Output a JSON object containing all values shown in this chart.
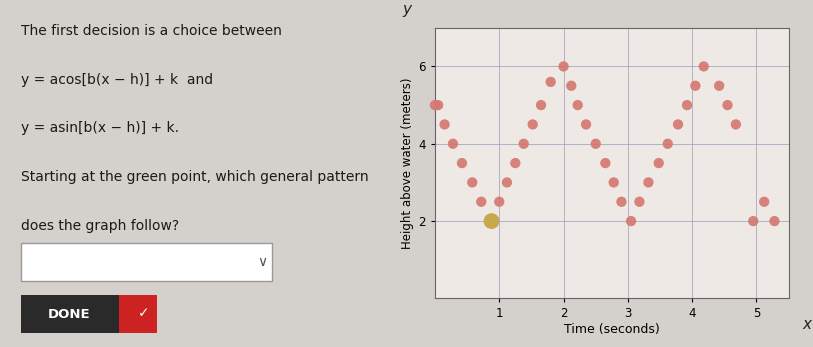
{
  "text_lines_raw": [
    "The first decision is a choice between",
    "y = acos[b(x − h)] + k  and",
    "y = asin[b(x − h)] + k.",
    "Starting at the green point, which general pattern",
    "does the graph follow?"
  ],
  "done_label": "DONE",
  "ylabel": "Height above water (meters)",
  "xlabel": "Time (seconds)",
  "x_axis_label": "x",
  "y_axis_label": "y",
  "xlim": [
    0,
    5.5
  ],
  "ylim": [
    0,
    7
  ],
  "xticks": [
    1,
    2,
    3,
    4,
    5
  ],
  "yticks": [
    2,
    4,
    6
  ],
  "bg_color": "#d4d0cc",
  "plot_bg": "#eee9e4",
  "red_color": "#d47870",
  "green_color": "#c8a84b",
  "marker_size": 55,
  "green_marker_size": 130,
  "red_points_x": [
    0.05,
    0.15,
    0.28,
    0.42,
    0.58,
    0.72,
    1.0,
    1.12,
    1.25,
    1.38,
    1.52,
    1.65,
    1.8,
    2.0,
    2.12,
    2.22,
    2.35,
    2.5,
    2.65,
    2.78,
    2.9,
    3.05,
    3.18,
    3.32,
    3.48,
    3.62,
    3.78,
    3.92,
    4.05,
    4.18,
    4.42,
    4.55,
    4.68,
    4.95,
    5.12,
    5.28
  ],
  "red_points_y": [
    5.0,
    4.5,
    4.0,
    3.5,
    3.0,
    2.5,
    2.5,
    3.0,
    3.5,
    4.0,
    4.5,
    5.0,
    5.6,
    6.0,
    5.5,
    5.0,
    4.5,
    4.0,
    3.5,
    3.0,
    2.5,
    2.0,
    2.5,
    3.0,
    3.5,
    4.0,
    4.5,
    5.0,
    5.5,
    6.0,
    5.5,
    5.0,
    4.5,
    2.0,
    2.5,
    2.0
  ],
  "green_point_x": 0.88,
  "green_point_y": 2.0,
  "yaxis_point_x": 0.0,
  "yaxis_point_y": 5.0
}
